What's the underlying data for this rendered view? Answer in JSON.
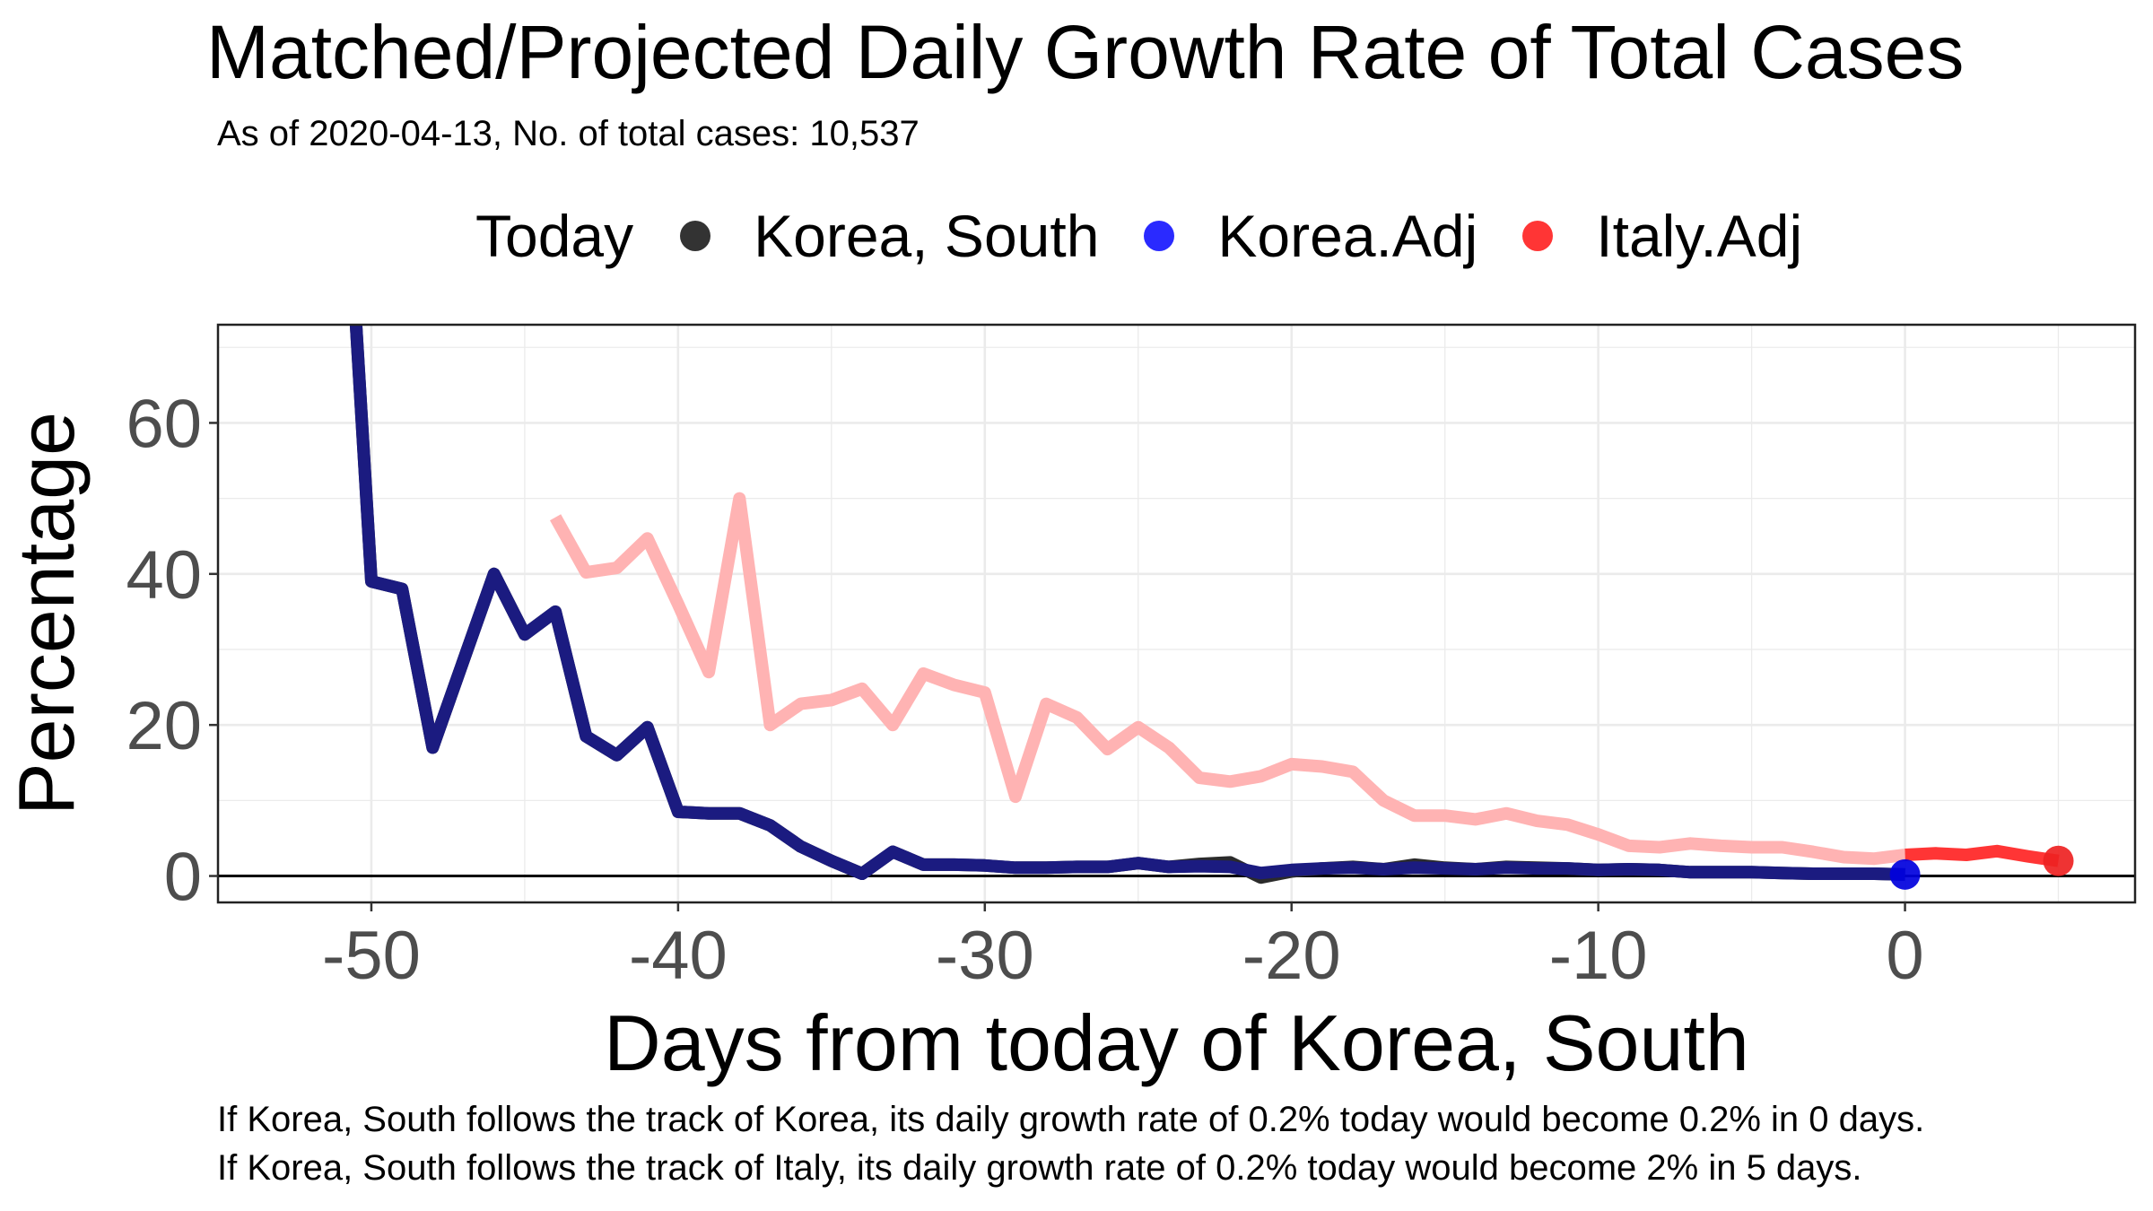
{
  "chart_data": {
    "type": "line",
    "title": "Matched/Projected Daily Growth Rate of Total Cases",
    "subtitle": "As of 2020-04-13, No. of total cases: 10,537",
    "xlabel": "Days from today of Korea, South",
    "ylabel": "Percentage",
    "xlim": [
      -55,
      7.5
    ],
    "ylim": [
      -3.5,
      73
    ],
    "x_ticks": [
      -50,
      -40,
      -30,
      -20,
      -10,
      0
    ],
    "x_tick_labels": [
      "-50",
      "-40",
      "-30",
      "-20",
      "-10",
      "0"
    ],
    "y_ticks": [
      0,
      20,
      40,
      60
    ],
    "y_tick_labels": [
      "0",
      "20",
      "40",
      "60"
    ],
    "grid": true,
    "legend": {
      "title": "Today",
      "position": "top",
      "entries": [
        {
          "label": "Korea, South",
          "color": "#333333"
        },
        {
          "label": "Korea.Adj",
          "color": "#2a2aff"
        },
        {
          "label": "Italy.Adj",
          "color": "#ff3535"
        }
      ]
    },
    "series": [
      {
        "name": "Korea, South",
        "color": "#2b2b2b",
        "x": [
          -50.5,
          -50,
          -49,
          -48,
          -47,
          -46,
          -45,
          -44,
          -43,
          -42,
          -41,
          -40,
          -39,
          -38,
          -37,
          -36,
          -35,
          -34,
          -33,
          -32,
          -31,
          -30,
          -29,
          -28,
          -27,
          -26,
          -25,
          -24,
          -23,
          -22,
          -21,
          -20,
          -19,
          -18,
          -17,
          -16,
          -15,
          -14,
          -13,
          -12,
          -11,
          -10,
          -9,
          -8,
          -7,
          -6,
          -5,
          -4,
          -3,
          -2,
          -1,
          0
        ],
        "y": [
          73,
          39,
          38,
          17,
          28.5,
          40,
          32,
          35,
          18.5,
          16,
          19.7,
          8.5,
          8.3,
          8.3,
          6.7,
          3.9,
          2,
          0.3,
          3.2,
          1.5,
          1.5,
          1.4,
          1.1,
          1.1,
          1.2,
          1.2,
          1.7,
          1.2,
          1.6,
          1.8,
          -0.2,
          0.6,
          1,
          1.2,
          0.9,
          1.5,
          1.1,
          0.9,
          1.2,
          1.1,
          1,
          0.8,
          0.9,
          0.8,
          0.5,
          0.5,
          0.5,
          0.4,
          0.3,
          0.3,
          0.3,
          0.2
        ]
      },
      {
        "name": "Korea.Adj",
        "color": "#1b1b80",
        "x": [
          -50.5,
          -50,
          -49,
          -48,
          -47,
          -46,
          -45,
          -44,
          -43,
          -42,
          -41,
          -40,
          -39,
          -38,
          -37,
          -36,
          -35,
          -34,
          -33,
          -32,
          -31,
          -30,
          -29,
          -28,
          -27,
          -26,
          -25,
          -24,
          -23,
          -22,
          -21,
          -20,
          -19,
          -18,
          -17,
          -16,
          -15,
          -14,
          -13,
          -12,
          -11,
          -10,
          -9,
          -8,
          -7,
          -6,
          -5,
          -4,
          -3,
          -2,
          -1,
          0
        ],
        "y": [
          73,
          39,
          38,
          17,
          28.5,
          40,
          32,
          35,
          18.5,
          16,
          19.7,
          8.5,
          8.3,
          8.3,
          6.7,
          3.9,
          2,
          0.3,
          3.2,
          1.5,
          1.5,
          1.4,
          1.1,
          1.1,
          1.2,
          1.2,
          1.7,
          1.2,
          1.3,
          1.2,
          0.4,
          0.8,
          1,
          1.1,
          0.9,
          1.1,
          1,
          0.9,
          1.1,
          1,
          1,
          0.8,
          0.9,
          0.8,
          0.5,
          0.5,
          0.5,
          0.4,
          0.3,
          0.3,
          0.3,
          0.2
        ]
      },
      {
        "name": "Italy.Adj",
        "color": "#ffb3b3",
        "x": [
          -44,
          -43,
          -42,
          -41,
          -40,
          -39,
          -38,
          -37,
          -36,
          -35,
          -34,
          -33,
          -32,
          -31,
          -30,
          -29,
          -28,
          -27,
          -26,
          -25,
          -24,
          -23,
          -22,
          -21,
          -20,
          -19,
          -18,
          -17,
          -16,
          -15,
          -14,
          -13,
          -12,
          -11,
          -10,
          -9,
          -8,
          -7,
          -6,
          -5,
          -4,
          -3,
          -2,
          -1,
          0
        ],
        "y": [
          47.5,
          40.2,
          40.8,
          44.7,
          36,
          27,
          50,
          20,
          22.8,
          23.3,
          24.8,
          20,
          26.8,
          25.3,
          24.3,
          10.5,
          22.8,
          21,
          16.8,
          19.7,
          17,
          13,
          12.5,
          13.2,
          14.8,
          14.5,
          13.8,
          10,
          8,
          8,
          7.5,
          8.3,
          7.3,
          6.8,
          5.5,
          4,
          3.8,
          4.3,
          4,
          3.8,
          3.8,
          3.2,
          2.5,
          2.3,
          2.8
        ]
      },
      {
        "name": "Italy.Adj (projected)",
        "color": "#ff3535",
        "x": [
          0,
          1,
          2,
          3,
          4,
          5
        ],
        "y": [
          2.8,
          3,
          2.8,
          3.3,
          2.6,
          2
        ]
      }
    ],
    "points": [
      {
        "name": "Korea.Adj",
        "x": 0,
        "y": 0.2,
        "color": "#0000dd"
      },
      {
        "name": "Italy.Adj",
        "x": 5,
        "y": 2,
        "color": "#ee2222"
      }
    ]
  },
  "captions": [
    "If Korea, South follows the track of Korea, its daily growth rate of 0.2% today would become 0.2% in 0 days.",
    "If Korea, South follows the track of Italy, its daily growth rate of 0.2% today would become 2% in 5 days."
  ]
}
